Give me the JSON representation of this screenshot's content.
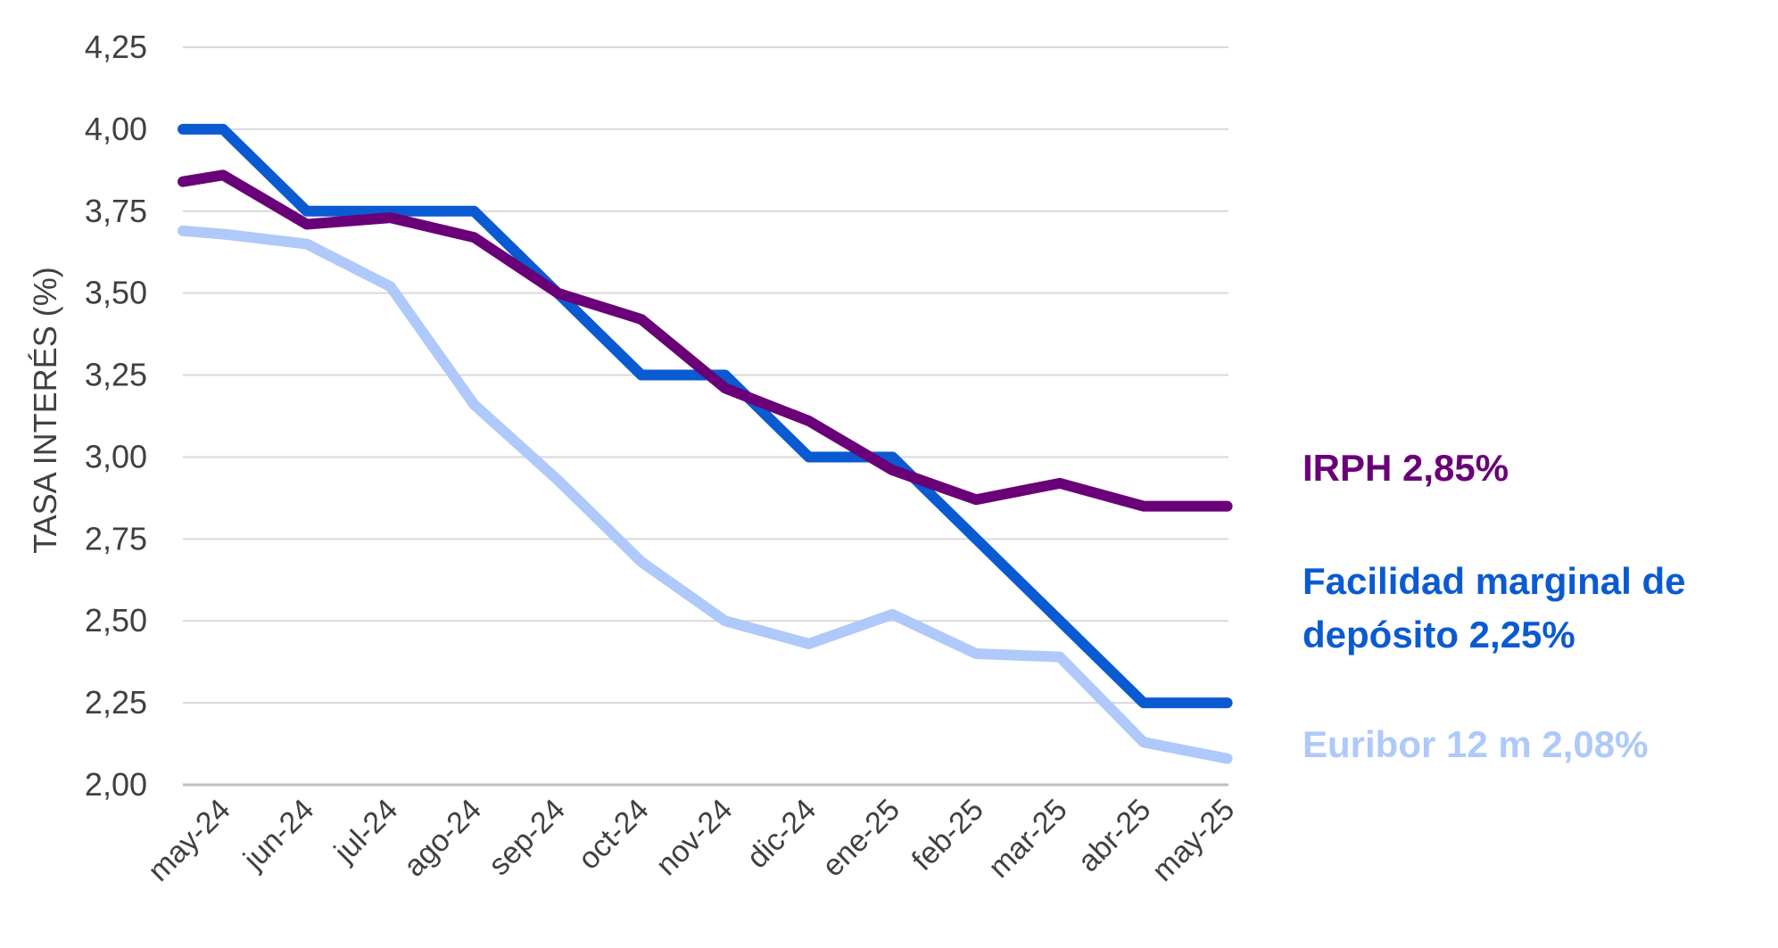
{
  "chart_data": {
    "type": "line",
    "title": "",
    "xlabel": "",
    "ylabel": "TASA INTERÉS (%)",
    "ylim": [
      2.0,
      4.25
    ],
    "yticks": [
      "2,00",
      "2,25",
      "2,50",
      "2,75",
      "3,00",
      "3,25",
      "3,50",
      "3,75",
      "4,00",
      "4,25"
    ],
    "ytick_values": [
      2.0,
      2.25,
      2.5,
      2.75,
      3.0,
      3.25,
      3.5,
      3.75,
      4.0,
      4.25
    ],
    "grid": true,
    "categories": [
      "may-24",
      "jun-24",
      "jul-24",
      "ago-24",
      "sep-24",
      "oct-24",
      "nov-24",
      "dic-24",
      "ene-25",
      "feb-25",
      "mar-25",
      "abr-25",
      "may-25"
    ],
    "series": [
      {
        "name": "Facilidad marginal de depósito",
        "color": "#0A5AD2",
        "x": [
          -0.5,
          0,
          1,
          2,
          3,
          3.5,
          4,
          5,
          6,
          7,
          8,
          9,
          10,
          11,
          12
        ],
        "values": [
          4.0,
          4.0,
          3.75,
          3.75,
          3.75,
          3.625,
          3.5,
          3.25,
          3.25,
          3.0,
          3.0,
          2.75,
          2.5,
          2.25,
          2.25
        ]
      },
      {
        "name": "IRPH",
        "color": "#6A0078",
        "x": [
          -0.5,
          0,
          1,
          2,
          3,
          4,
          5,
          6,
          7,
          8,
          9,
          10,
          11,
          12
        ],
        "values": [
          3.84,
          3.86,
          3.71,
          3.73,
          3.67,
          3.5,
          3.42,
          3.21,
          3.11,
          2.96,
          2.87,
          2.92,
          2.85,
          2.85
        ]
      },
      {
        "name": "Euribor 12 m",
        "color": "#AEC9FA",
        "x": [
          -0.5,
          0,
          1,
          2,
          3,
          4,
          5,
          6,
          7,
          8,
          9,
          10,
          11,
          12
        ],
        "values": [
          3.69,
          3.68,
          3.65,
          3.52,
          3.16,
          2.93,
          2.68,
          2.5,
          2.43,
          2.52,
          2.4,
          2.39,
          2.13,
          2.08
        ]
      }
    ],
    "legend": [
      {
        "text": "IRPH 2,85%",
        "color": "#6A0078"
      },
      {
        "text": "Facilidad marginal de",
        "text2": "depósito 2,25%",
        "color": "#0A5AD2"
      },
      {
        "text": "Euribor 12 m 2,08%",
        "color": "#AEC9FA"
      }
    ]
  }
}
